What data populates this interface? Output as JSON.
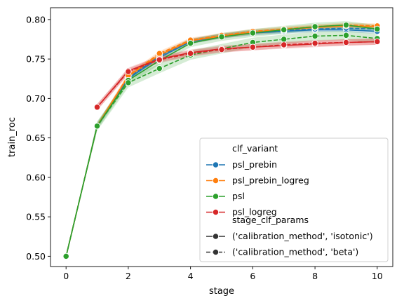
{
  "chart_data": {
    "type": "line",
    "xlabel": "stage",
    "ylabel": "train_roc",
    "xlim": [
      -0.5,
      10.5
    ],
    "ylim": [
      0.487,
      0.815
    ],
    "xticks": [
      0,
      2,
      4,
      6,
      8,
      10
    ],
    "yticks": [
      0.5,
      0.55,
      0.6,
      0.65,
      0.7,
      0.75,
      0.8
    ],
    "ytick_labels": [
      "0.50",
      "0.55",
      "0.60",
      "0.65",
      "0.70",
      "0.75",
      "0.80"
    ],
    "grid": false,
    "legend_placement": "lower-right",
    "legend": {
      "hue_title": "clf_variant",
      "style_title": "stage_clf_params",
      "hue_entries": [
        "psl_prebin",
        "psl_prebin_logreg",
        "psl",
        "psl_logreg"
      ],
      "style_entries": [
        "('calibration_method', 'isotonic')",
        "('calibration_method', 'beta')"
      ]
    },
    "colors": {
      "psl_prebin": "#1f77b4",
      "psl_prebin_logreg": "#ff7f0e",
      "psl": "#2ca02c",
      "psl_logreg": "#d62728"
    },
    "series": [
      {
        "variant": "psl_prebin",
        "calibration": "isotonic",
        "style": "solid",
        "x": [
          0,
          1,
          2,
          3,
          4,
          5,
          6,
          7,
          8,
          9,
          10
        ],
        "y": [
          0.5,
          0.665,
          0.725,
          0.752,
          0.772,
          0.779,
          0.783,
          0.785,
          0.787,
          0.787,
          0.785
        ],
        "band": 0.003
      },
      {
        "variant": "psl_prebin",
        "calibration": "beta",
        "style": "dashed",
        "x": [
          0,
          1,
          2,
          3,
          4,
          5,
          6,
          7,
          8,
          9,
          10
        ],
        "y": [
          0.5,
          0.665,
          0.726,
          0.754,
          0.773,
          0.779,
          0.784,
          0.786,
          0.788,
          0.789,
          0.788
        ],
        "band": 0.003
      },
      {
        "variant": "psl_prebin_logreg",
        "calibration": "isotonic",
        "style": "solid",
        "x": [
          0,
          1,
          2,
          3,
          4,
          5,
          6,
          7,
          8,
          9,
          10
        ],
        "y": [
          0.5,
          0.665,
          0.728,
          0.755,
          0.773,
          0.779,
          0.784,
          0.787,
          0.79,
          0.792,
          0.791
        ],
        "band": 0.003
      },
      {
        "variant": "psl_prebin_logreg",
        "calibration": "beta",
        "style": "dashed",
        "x": [
          0,
          1,
          2,
          3,
          4,
          5,
          6,
          7,
          8,
          9,
          10
        ],
        "y": [
          0.5,
          0.665,
          0.729,
          0.757,
          0.774,
          0.78,
          0.785,
          0.788,
          0.791,
          0.793,
          0.792
        ],
        "band": 0.003
      },
      {
        "variant": "psl",
        "calibration": "isotonic",
        "style": "solid",
        "x": [
          0,
          1,
          2,
          3,
          4,
          5,
          6,
          7,
          8,
          9,
          10
        ],
        "y": [
          0.5,
          0.665,
          0.723,
          0.748,
          0.77,
          0.778,
          0.783,
          0.787,
          0.791,
          0.793,
          0.788
        ],
        "band": 0.005
      },
      {
        "variant": "psl",
        "calibration": "beta",
        "style": "dashed",
        "x": [
          0,
          1,
          2,
          3,
          4,
          5,
          6,
          7,
          8,
          9,
          10
        ],
        "y": [
          0.5,
          0.665,
          0.72,
          0.738,
          0.755,
          0.763,
          0.771,
          0.775,
          0.779,
          0.78,
          0.776
        ],
        "band": 0.006
      },
      {
        "variant": "psl_logreg",
        "calibration": "isotonic",
        "style": "solid",
        "x": [
          1,
          2,
          3,
          4,
          5,
          6,
          7,
          8,
          9,
          10
        ],
        "y": [
          0.689,
          0.735,
          0.75,
          0.758,
          0.763,
          0.765,
          0.767,
          0.769,
          0.771,
          0.772
        ],
        "band": 0.004
      },
      {
        "variant": "psl_logreg",
        "calibration": "beta",
        "style": "dashed",
        "x": [
          1,
          2,
          3,
          4,
          5,
          6,
          7,
          8,
          9,
          10
        ],
        "y": [
          0.689,
          0.734,
          0.749,
          0.757,
          0.762,
          0.765,
          0.768,
          0.77,
          0.771,
          0.772
        ],
        "band": 0.004
      }
    ]
  }
}
